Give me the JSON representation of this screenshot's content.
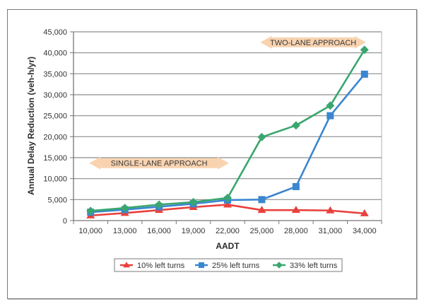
{
  "chart_data": {
    "type": "line",
    "title": "",
    "xlabel": "AADT",
    "ylabel": "Annual Delay Reduction (veh-h/yr)",
    "categories": [
      "10,000",
      "13,000",
      "16,000",
      "19,000",
      "22,000",
      "25,000",
      "28,000",
      "31,000",
      "34,000"
    ],
    "ylim": [
      0,
      45000
    ],
    "yticks": [
      0,
      5000,
      10000,
      15000,
      20000,
      25000,
      30000,
      35000,
      40000,
      45000
    ],
    "ytick_labels": [
      "0",
      "5,000",
      "10,000",
      "15,000",
      "20,000",
      "25,000",
      "30,000",
      "35,000",
      "40,000",
      "45,000"
    ],
    "grid": "horizontal",
    "legend_position": "bottom",
    "series": [
      {
        "name": "10% left turns",
        "color": "#e8413c",
        "marker": "triangle",
        "values": [
          1200,
          1800,
          2500,
          3200,
          3800,
          2500,
          2500,
          2400,
          1700
        ]
      },
      {
        "name": "25% left turns",
        "color": "#3b86d0",
        "marker": "square",
        "values": [
          2000,
          2600,
          3300,
          4000,
          4900,
          5000,
          8100,
          25000,
          34900
        ]
      },
      {
        "name": "33% left turns",
        "color": "#3aa66e",
        "marker": "diamond",
        "values": [
          2300,
          3000,
          3800,
          4400,
          5400,
          19900,
          22700,
          27400,
          40700
        ]
      }
    ],
    "annotations": [
      {
        "text": "SINGLE-LANE APPROACH",
        "type": "double-arrow",
        "from_category": 0,
        "to_category": 4,
        "y_value": 13700
      },
      {
        "text": "TWO-LANE APPROACH",
        "type": "double-arrow",
        "from_category": 5,
        "to_category": 8,
        "y_value": 42500
      }
    ],
    "annotation_color": "#f9d3b0"
  }
}
